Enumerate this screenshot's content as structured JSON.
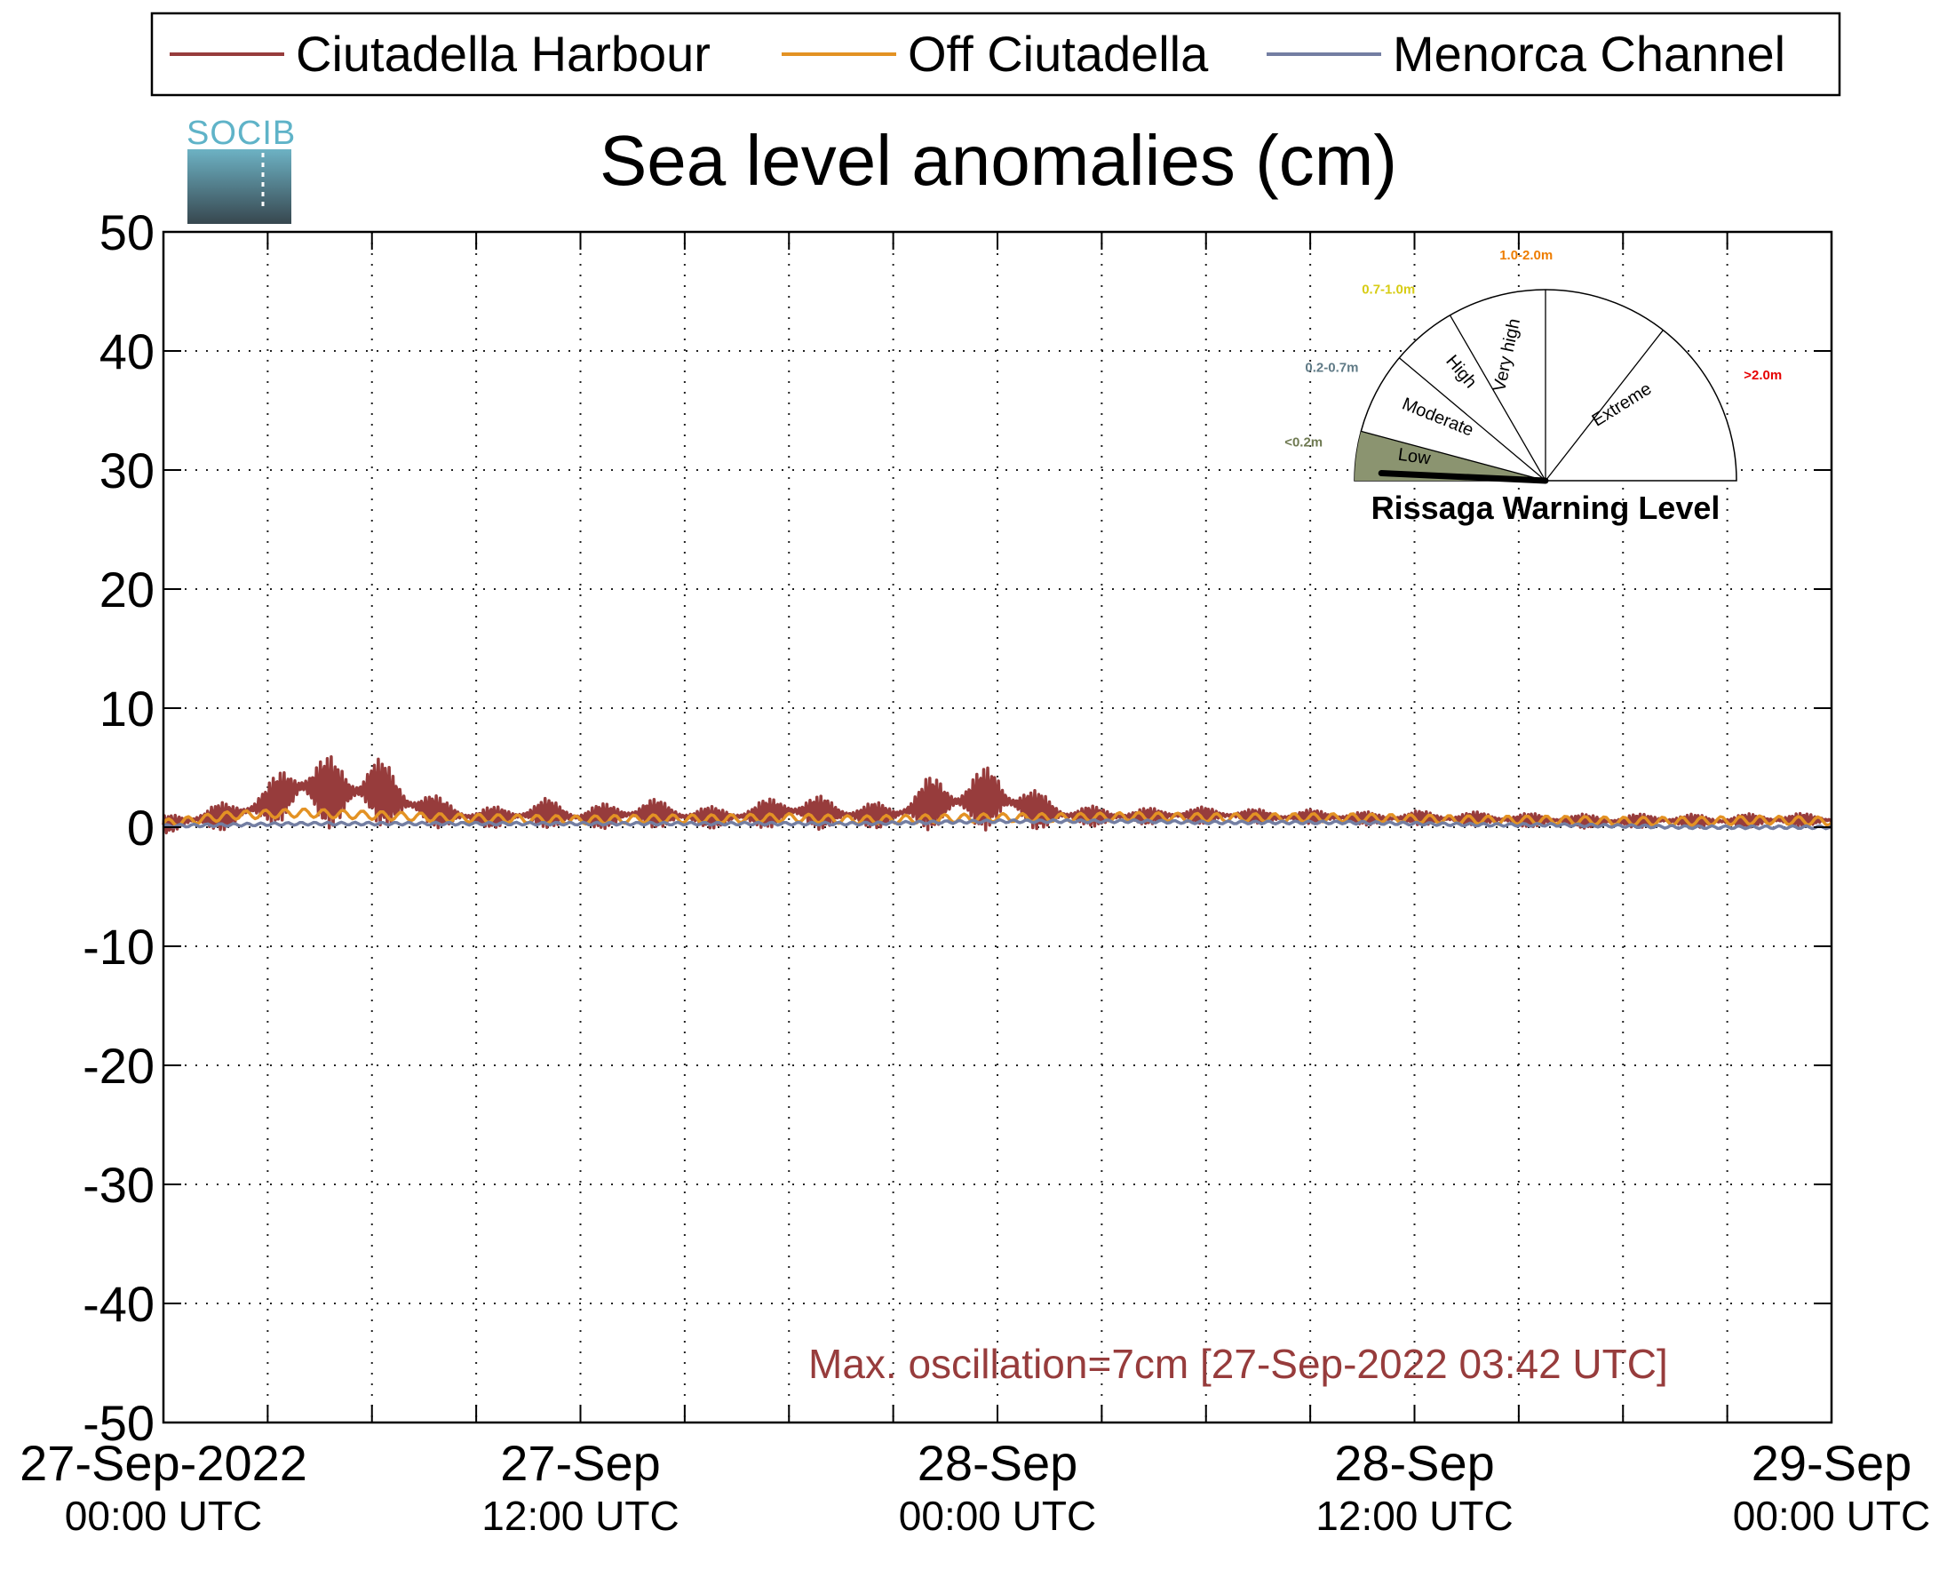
{
  "logo_text": "SOCIB",
  "colors": {
    "harbour": "#973c3c",
    "off": "#e39224",
    "channel": "#737ea2",
    "annotation": "#973c3c",
    "low_fill": "#8b9470",
    "label_low": "#6f7a52",
    "label_moderate": "#5f7a86",
    "label_high": "#d7cc14",
    "label_veryhigh": "#ee7d00",
    "label_extreme": "#e60000"
  },
  "gauge": {
    "title": "Rissaga Warning Level",
    "sectors": [
      "Low",
      "Moderate",
      "High",
      "Very high",
      "Extreme"
    ],
    "ranges": [
      "<0.2m",
      "0.2-0.7m",
      "0.7-1.0m",
      "1.0-2.0m",
      ">2.0m"
    ],
    "current_level": "Low",
    "current_value_m": 0.07
  },
  "chart_data": {
    "type": "line",
    "title": "Sea level anomalies (cm)",
    "xlabel": "",
    "ylabel": "",
    "ylim": [
      -50,
      50
    ],
    "yticks": [
      50,
      40,
      30,
      20,
      10,
      0,
      -10,
      -20,
      -30,
      -40,
      -50
    ],
    "xlim_hours": [
      0,
      48
    ],
    "x_tick_hours": [
      0,
      12,
      24,
      36,
      48
    ],
    "x_tick_labels": [
      {
        "line1": "27-Sep-2022",
        "line2": "00:00 UTC"
      },
      {
        "line1": "27-Sep",
        "line2": "12:00 UTC"
      },
      {
        "line1": "28-Sep",
        "line2": "00:00 UTC"
      },
      {
        "line1": "28-Sep",
        "line2": "12:00 UTC"
      },
      {
        "line1": "29-Sep",
        "line2": "00:00 UTC"
      }
    ],
    "grid": true,
    "legend_position": "top",
    "annotation": "Max. oscillation=7cm [27-Sep-2022 03:42 UTC]",
    "series": [
      {
        "name": "Ciutadella Harbour",
        "x": [
          0,
          1,
          2,
          3,
          4,
          5,
          6,
          7,
          8,
          9,
          10,
          11,
          12,
          13,
          14,
          15,
          16,
          17,
          18,
          19,
          20,
          21,
          22,
          23,
          24,
          25,
          26,
          27,
          28,
          29,
          30,
          31,
          32,
          33,
          34,
          35,
          36,
          37,
          38,
          39,
          40,
          41,
          42,
          43,
          44,
          45,
          46,
          47,
          48
        ],
        "y": [
          0.2,
          0.7,
          1.0,
          2.0,
          3.5,
          2.8,
          3.2,
          2.0,
          1.2,
          0.8,
          0.9,
          1.2,
          0.8,
          1.0,
          1.2,
          0.9,
          0.8,
          1.0,
          1.4,
          1.2,
          1.0,
          1.0,
          2.0,
          2.2,
          2.5,
          1.5,
          1.0,
          0.9,
          0.9,
          1.0,
          1.0,
          1.0,
          0.8,
          0.9,
          0.8,
          0.7,
          0.8,
          0.7,
          0.7,
          0.6,
          0.6,
          0.5,
          0.5,
          0.6,
          0.5,
          0.5,
          0.6,
          0.6,
          0.6
        ],
        "amplitude": [
          1.5,
          2.0,
          2.5,
          3.5,
          6.5,
          6.0,
          6.5,
          4.0,
          2.5,
          1.8,
          1.8,
          2.5,
          2.0,
          2.2,
          2.5,
          2.0,
          1.8,
          2.2,
          3.0,
          2.8,
          2.2,
          2.2,
          4.5,
          5.0,
          5.5,
          3.5,
          2.0,
          1.6,
          1.4,
          1.4,
          1.4,
          1.3,
          1.2,
          1.2,
          1.2,
          1.1,
          1.2,
          1.2,
          1.2,
          1.2,
          1.1,
          1.2,
          1.2,
          1.1,
          1.2,
          1.2,
          1.1,
          1.2,
          1.0
        ]
      },
      {
        "name": "Off Ciutadella",
        "x": [
          0,
          2,
          4,
          6,
          8,
          10,
          12,
          14,
          16,
          18,
          20,
          22,
          24,
          26,
          28,
          30,
          32,
          34,
          36,
          38,
          40,
          42,
          44,
          46,
          48
        ],
        "y": [
          0.3,
          1.0,
          1.2,
          1.0,
          0.8,
          0.7,
          0.6,
          0.7,
          0.7,
          0.8,
          0.6,
          0.7,
          0.8,
          0.8,
          0.9,
          0.8,
          0.8,
          0.8,
          0.7,
          0.6,
          0.6,
          0.5,
          0.5,
          0.6,
          0.5
        ]
      },
      {
        "name": "Menorca Channel",
        "x": [
          0,
          2,
          4,
          6,
          8,
          10,
          12,
          14,
          16,
          18,
          20,
          22,
          24,
          26,
          28,
          30,
          32,
          34,
          36,
          38,
          40,
          42,
          44,
          46,
          48
        ],
        "y": [
          0.1,
          0.2,
          0.3,
          0.3,
          0.3,
          0.3,
          0.3,
          0.3,
          0.3,
          0.3,
          0.3,
          0.4,
          0.5,
          0.5,
          0.5,
          0.4,
          0.4,
          0.4,
          0.3,
          0.2,
          0.2,
          0.1,
          0.0,
          0.0,
          0.0
        ]
      }
    ]
  }
}
